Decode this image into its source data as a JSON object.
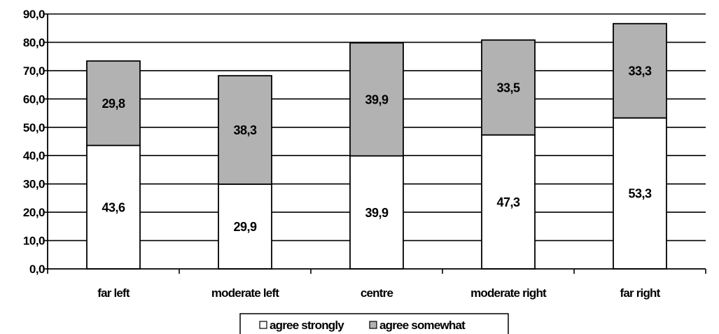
{
  "chart_data": {
    "type": "bar",
    "stacked": true,
    "categories": [
      "far left",
      "moderate left",
      "centre",
      "moderate right",
      "far right"
    ],
    "series": [
      {
        "name": "agree strongly",
        "values": [
          43.6,
          29.9,
          39.9,
          47.3,
          53.3
        ],
        "labels": [
          "43,6",
          "29,9",
          "39,9",
          "47,3",
          "53,3"
        ],
        "color": "#ffffff"
      },
      {
        "name": "agree somewhat",
        "values": [
          29.8,
          38.3,
          39.9,
          33.5,
          33.3
        ],
        "labels": [
          "29,8",
          "38,3",
          "39,9",
          "33,5",
          "33,3"
        ],
        "color": "#b2b2b2"
      }
    ],
    "y_ticks": [
      "0,0",
      "10,0",
      "20,0",
      "30,0",
      "40,0",
      "50,0",
      "60,0",
      "70,0",
      "80,0",
      "90,0"
    ],
    "ylim": [
      0,
      90
    ],
    "grid": true,
    "legend_position": "bottom"
  }
}
